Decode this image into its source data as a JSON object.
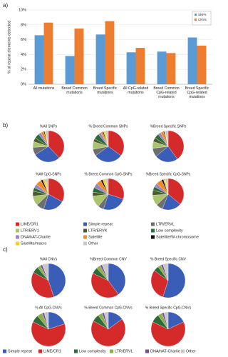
{
  "chart_data": [
    {
      "type": "bar",
      "label": "a)",
      "y_label": "% of repeat elements detected",
      "categories": [
        "All mutations",
        "Breed Common mutations",
        "Breed Specific mutations",
        "All CpG-related mutations",
        "Breed Common CpG-related mutations",
        "Breed Specific CpG-related mutations"
      ],
      "series": [
        {
          "name": "SNPs",
          "color": "#5b9bd5",
          "values": [
            6.6,
            3.8,
            6.7,
            4.3,
            4.4,
            6.3
          ]
        },
        {
          "name": "CNVs",
          "color": "#ed7d31",
          "values": [
            8.3,
            7.5,
            8.5,
            4.9,
            4.2,
            5.2
          ]
        }
      ],
      "ylim": [
        0,
        10
      ],
      "yticks": [
        {
          "value": 0,
          "label": "0%"
        },
        {
          "value": 2,
          "label": "2%"
        },
        {
          "value": 4,
          "label": "4%"
        },
        {
          "value": 6,
          "label": "6%"
        },
        {
          "value": 8,
          "label": "8%"
        },
        {
          "value": 10,
          "label": "10%"
        }
      ],
      "grid": true,
      "legend": "upper right"
    },
    {
      "type": "pie",
      "label": "b)",
      "categories": [
        "LINE/CR1",
        "Simple repeat",
        "LTR/ERVL",
        "LTR/ERV1",
        "LTR/ERVK",
        "Low complexity",
        "DNA/hAT-Charlie",
        "Satellite",
        "Satellite/W-chromosome",
        "Satellite/macro",
        "Other"
      ],
      "colors": [
        "#d42a2a",
        "#3a5db8",
        "#6e6e6e",
        "#a9c46c",
        "#4b5a2a",
        "#2e6b3a",
        "#9b86c0",
        "#f08a24",
        "#111111",
        "#f2d12e",
        "#c8c8c8"
      ],
      "series": [
        {
          "name": "%All SNPs",
          "values": [
            38,
            28,
            8,
            6,
            4,
            5,
            3,
            3,
            1,
            1,
            3
          ]
        },
        {
          "name": "% Breed Common SNPs",
          "values": [
            35,
            30,
            7,
            8,
            3,
            6,
            3,
            2,
            1,
            2,
            3
          ]
        },
        {
          "name": "%Breed Specific SNPs",
          "values": [
            40,
            24,
            9,
            7,
            4,
            5,
            3,
            3,
            1,
            1,
            3
          ]
        },
        {
          "name": "%All CpG-SNPs",
          "values": [
            33,
            22,
            8,
            10,
            5,
            4,
            4,
            6,
            2,
            3,
            3
          ]
        },
        {
          "name": "% Breed Common CpG-SNPs",
          "values": [
            30,
            25,
            6,
            12,
            4,
            5,
            5,
            5,
            2,
            3,
            3
          ]
        },
        {
          "name": "%Breed Specific CpG-SNPs",
          "values": [
            36,
            20,
            7,
            11,
            5,
            4,
            4,
            6,
            2,
            2,
            3
          ]
        }
      ]
    },
    {
      "type": "pie",
      "label": "c)",
      "categories": [
        "Simple repeat",
        "LINE/CR1",
        "Low complexity",
        "LTR/ERVL",
        "DNA/hAT-Charlie",
        "Other"
      ],
      "colors": [
        "#3a5db8",
        "#d42a2a",
        "#2e6b3a",
        "#8db04a",
        "#7a4fa0",
        "#c8c8c8"
      ],
      "series": [
        {
          "name": "%All CNVs",
          "values": [
            45,
            38,
            6,
            3,
            2,
            6
          ]
        },
        {
          "name": "%Breed Common CNV",
          "values": [
            40,
            42,
            6,
            4,
            2,
            6
          ]
        },
        {
          "name": "% Breed Specific CNV",
          "values": [
            55,
            30,
            5,
            3,
            2,
            5
          ]
        },
        {
          "name": "% All CpG-CNVs",
          "values": [
            20,
            62,
            7,
            5,
            2,
            4
          ]
        },
        {
          "name": "% Breed Common CpG-CNVs",
          "values": [
            15,
            68,
            7,
            4,
            2,
            4
          ]
        },
        {
          "name": "% Breed Specific CpG-CNVs",
          "values": [
            18,
            64,
            8,
            4,
            2,
            4
          ]
        }
      ]
    }
  ]
}
